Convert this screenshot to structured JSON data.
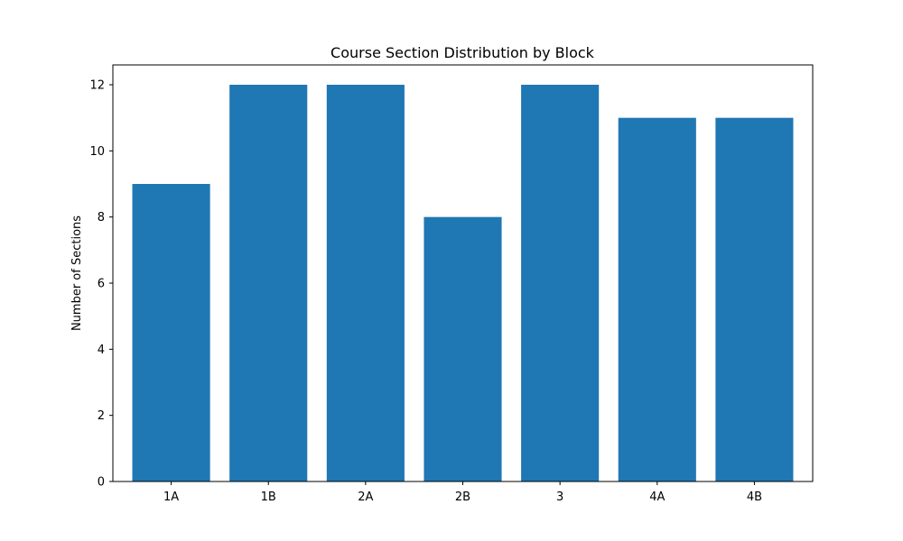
{
  "chart_data": {
    "type": "bar",
    "title": "Course Section Distribution by Block",
    "xlabel": "",
    "ylabel": "Number of Sections",
    "categories": [
      "1A",
      "1B",
      "2A",
      "2B",
      "3",
      "4A",
      "4B"
    ],
    "values": [
      9,
      12,
      12,
      8,
      12,
      11,
      11
    ],
    "ylim": [
      0,
      12.6
    ],
    "yticks": [
      0,
      2,
      4,
      6,
      8,
      10,
      12
    ],
    "grid": false,
    "bar_color": "#1f77b4"
  }
}
